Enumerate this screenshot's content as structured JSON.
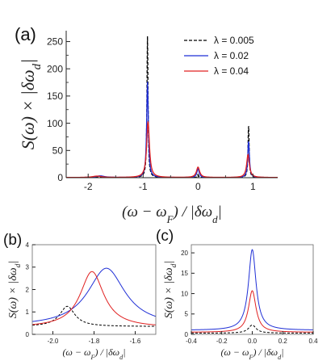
{
  "chart_data": [
    {
      "type": "line",
      "panel_label": "(a)",
      "xlabel": "(ω − ωF) / |δωd|",
      "ylabel": "S(ω) × |δωd|",
      "xlim": [
        -2.4,
        1.45
      ],
      "ylim": [
        0,
        270
      ],
      "xticks": [
        -2,
        -1,
        0,
        1
      ],
      "xticklabels": [
        "-2",
        "-1",
        "0",
        "1"
      ],
      "yticks": [
        0,
        50,
        100,
        150,
        200,
        250
      ],
      "yticklabels": [
        "0",
        "50",
        "100",
        "150",
        "200",
        "250"
      ],
      "legend_position": "top-right",
      "series": [
        {
          "name": "λ = 0.005",
          "color": "#000000",
          "style": "dashed",
          "peaks": [
            {
              "x": -1.82,
              "h": 1.5,
              "w": 0.06
            },
            {
              "x": -0.92,
              "h": 260,
              "w": 0.012
            },
            {
              "x": 0.0,
              "h": 5,
              "w": 0.015
            },
            {
              "x": 0.92,
              "h": 97,
              "w": 0.012
            }
          ]
        },
        {
          "name": "λ = 0.02",
          "color": "#1f2fd6",
          "style": "solid",
          "peaks": [
            {
              "x": -1.78,
              "h": 3,
              "w": 0.09
            },
            {
              "x": -0.92,
              "h": 176,
              "w": 0.018
            },
            {
              "x": 0.0,
              "h": 16,
              "w": 0.025
            },
            {
              "x": 0.92,
              "h": 67,
              "w": 0.018
            }
          ]
        },
        {
          "name": "λ = 0.04",
          "color": "#e02020",
          "style": "solid",
          "peaks": [
            {
              "x": -1.84,
              "h": 2.5,
              "w": 0.1
            },
            {
              "x": -0.91,
              "h": 103,
              "w": 0.03
            },
            {
              "x": 0.0,
              "h": 19,
              "w": 0.035
            },
            {
              "x": 0.91,
              "h": 42,
              "w": 0.03
            }
          ]
        }
      ]
    },
    {
      "type": "line",
      "panel_label": "(b)",
      "xlabel": "(ω − ωF) / |δωd|",
      "ylabel": "S(ω) × |δωd|",
      "xlim": [
        -2.1,
        -1.5
      ],
      "ylim": [
        0,
        4
      ],
      "xticks": [
        -2.0,
        -1.8,
        -1.6
      ],
      "xticklabels": [
        "-2.0",
        "-1.8",
        "-1.6"
      ],
      "yticks": [
        0,
        1,
        2,
        3,
        4
      ],
      "yticklabels": [
        "0",
        "1",
        "2",
        "3",
        "4"
      ],
      "series": [
        {
          "name": "",
          "color": "#000000",
          "style": "dashed",
          "baseline": 0.35,
          "peaks": [
            {
              "x": -1.93,
              "h": 0.9,
              "w": 0.045
            }
          ]
        },
        {
          "name": "",
          "color": "#1f2fd6",
          "style": "solid",
          "baseline": 0.35,
          "peaks": [
            {
              "x": -1.74,
              "h": 2.6,
              "w": 0.11
            }
          ]
        },
        {
          "name": "",
          "color": "#e02020",
          "style": "solid",
          "baseline": 0.3,
          "peaks": [
            {
              "x": -1.81,
              "h": 2.5,
              "w": 0.07
            }
          ]
        }
      ]
    },
    {
      "type": "line",
      "panel_label": "(c)",
      "xlabel": "(ω − ωF) / |δωd|",
      "ylabel": "S(ω) × |δωd|",
      "xlim": [
        -0.4,
        0.4
      ],
      "ylim": [
        0,
        22
      ],
      "xticks": [
        -0.4,
        -0.2,
        0.0,
        0.2,
        0.4
      ],
      "xticklabels": [
        "-0.4",
        "-0.2",
        "0.0",
        "0.2",
        "0.4"
      ],
      "yticks": [
        0,
        5,
        10,
        15,
        20
      ],
      "yticklabels": [
        "0",
        "5",
        "10",
        "15",
        "20"
      ],
      "series": [
        {
          "name": "",
          "color": "#000000",
          "style": "dashed",
          "baseline": 0.3,
          "peaks": [
            {
              "x": 0.0,
              "h": 2.0,
              "w": 0.03
            }
          ]
        },
        {
          "name": "",
          "color": "#1f2fd6",
          "style": "solid",
          "baseline": 1.0,
          "peaks": [
            {
              "x": 0.0,
              "h": 19.8,
              "w": 0.03
            }
          ]
        },
        {
          "name": "",
          "color": "#e02020",
          "style": "solid",
          "baseline": 0.5,
          "peaks": [
            {
              "x": 0.0,
              "h": 10.2,
              "w": 0.03
            }
          ]
        }
      ]
    }
  ]
}
